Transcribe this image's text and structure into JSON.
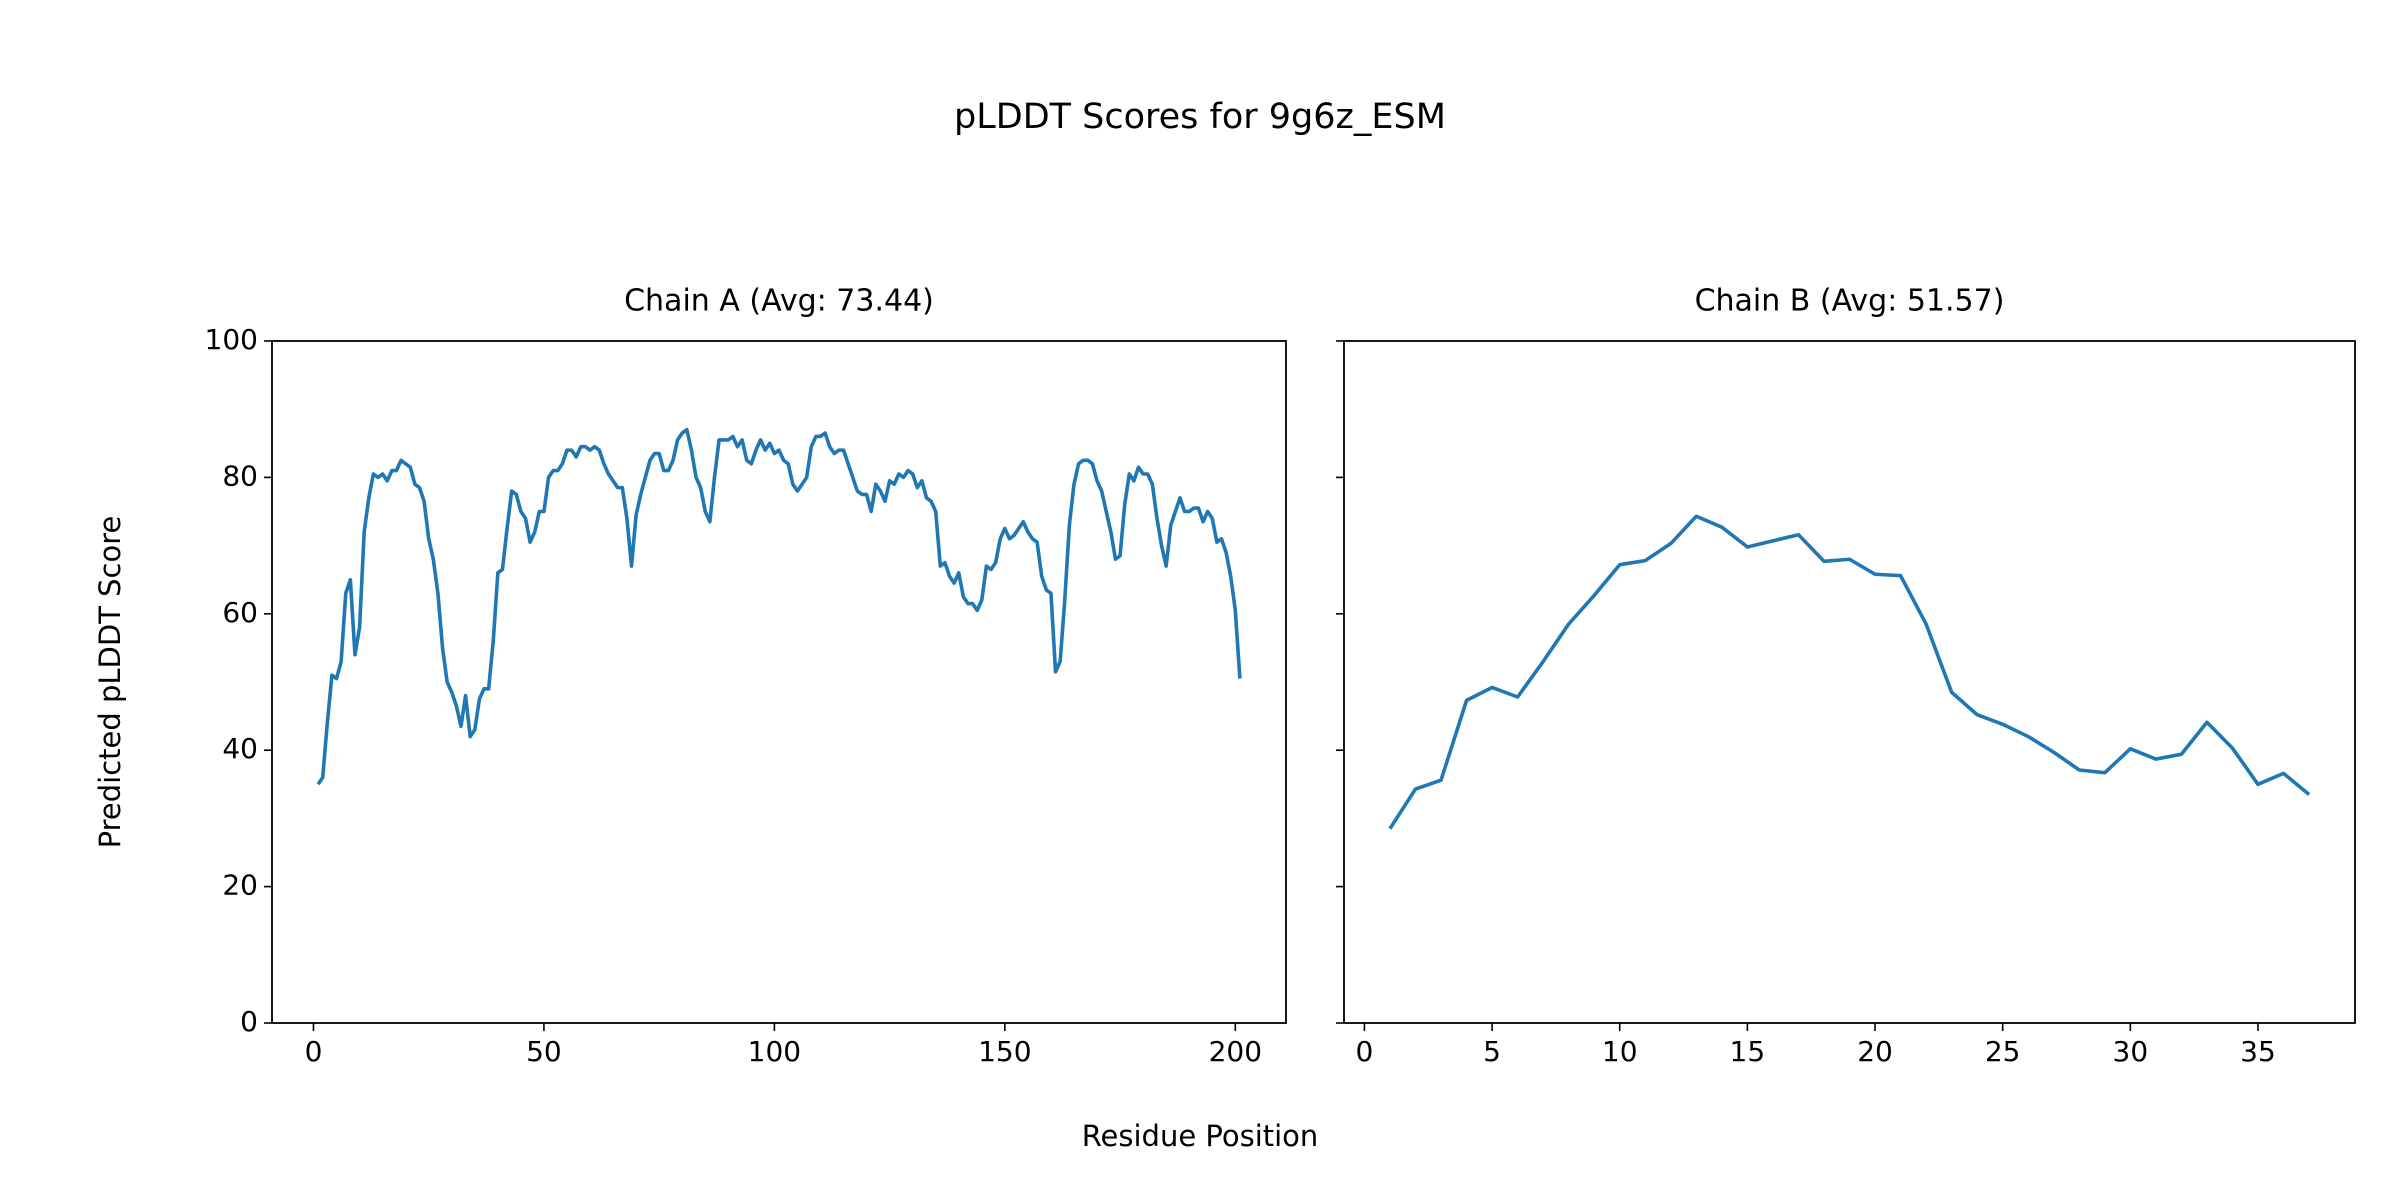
{
  "title": "pLDDT Scores for 9g6z_ESM",
  "xlabel": "Residue Position",
  "chart_data": [
    {
      "type": "line",
      "title": "Chain A (Avg: 73.44)",
      "ylabel": "Predicted pLDDT Score",
      "xlim": [
        -9,
        211
      ],
      "ylim": [
        0,
        100
      ],
      "xticks": [
        0,
        50,
        100,
        150,
        200
      ],
      "yticks": [
        0,
        20,
        40,
        60,
        80,
        100
      ],
      "show_ytick_labels": true,
      "color": "#1f77b4",
      "x": [
        1,
        2,
        3,
        4,
        5,
        6,
        7,
        8,
        9,
        10,
        11,
        12,
        13,
        14,
        15,
        16,
        17,
        18,
        19,
        20,
        21,
        22,
        23,
        24,
        25,
        26,
        27,
        28,
        29,
        30,
        31,
        32,
        33,
        34,
        35,
        36,
        37,
        38,
        39,
        40,
        41,
        42,
        43,
        44,
        45,
        46,
        47,
        48,
        49,
        50,
        51,
        52,
        53,
        54,
        55,
        56,
        57,
        58,
        59,
        60,
        61,
        62,
        63,
        64,
        65,
        66,
        67,
        68,
        69,
        70,
        71,
        72,
        73,
        74,
        75,
        76,
        77,
        78,
        79,
        80,
        81,
        82,
        83,
        84,
        85,
        86,
        87,
        88,
        89,
        90,
        91,
        92,
        93,
        94,
        95,
        96,
        97,
        98,
        99,
        100,
        101,
        102,
        103,
        104,
        105,
        106,
        107,
        108,
        109,
        110,
        111,
        112,
        113,
        114,
        115,
        116,
        117,
        118,
        119,
        120,
        121,
        122,
        123,
        124,
        125,
        126,
        127,
        128,
        129,
        130,
        131,
        132,
        133,
        134,
        135,
        136,
        137,
        138,
        139,
        140,
        141,
        142,
        143,
        144,
        145,
        146,
        147,
        148,
        149,
        150,
        151,
        152,
        153,
        154,
        155,
        156,
        157,
        158,
        159,
        160,
        161,
        162,
        163,
        164,
        165,
        166,
        167,
        168,
        169,
        170,
        171,
        172,
        173,
        174,
        175,
        176,
        177,
        178,
        179,
        180,
        181,
        182,
        183,
        184,
        185,
        186,
        187,
        188,
        189,
        190,
        191,
        192,
        193,
        194,
        195,
        196,
        197,
        198,
        199,
        200,
        201
      ],
      "values": [
        35,
        36,
        44,
        51,
        50.5,
        53,
        63,
        65,
        54,
        58,
        72,
        77,
        80.5,
        80,
        80.5,
        79.5,
        81,
        81,
        82.5,
        82,
        81.5,
        79,
        78.5,
        76.5,
        71,
        68,
        63,
        55,
        50,
        48.5,
        46.5,
        43.5,
        48,
        42,
        43,
        47.5,
        49,
        49,
        56,
        66,
        66.5,
        72.5,
        78,
        77.5,
        75,
        74,
        70.5,
        72,
        75,
        75,
        80,
        81,
        81,
        82,
        84,
        84,
        83,
        84.5,
        84.5,
        84,
        84.5,
        84,
        82,
        80.5,
        79.5,
        78.5,
        78.5,
        74,
        67,
        74.5,
        77.5,
        80,
        82.5,
        83.5,
        83.5,
        81,
        81,
        82.5,
        85.5,
        86.5,
        87,
        84,
        80,
        78.5,
        75,
        73.5,
        80,
        85.5,
        85.5,
        85.5,
        86,
        84.5,
        85.5,
        82.5,
        82,
        84,
        85.5,
        84,
        85,
        83.5,
        84,
        82.5,
        82,
        79,
        78,
        79,
        80,
        84.5,
        86,
        86,
        86.5,
        84.5,
        83.5,
        84,
        84,
        82,
        80,
        78,
        77.5,
        77.5,
        75,
        79,
        78,
        76.5,
        79.5,
        79,
        80.5,
        80,
        81,
        80.5,
        78.5,
        79.5,
        77,
        76.5,
        75,
        67,
        67.5,
        65.5,
        64.5,
        66,
        62.5,
        61.5,
        61.5,
        60.5,
        62,
        67,
        66.5,
        67.5,
        71,
        72.5,
        71,
        71.5,
        72.5,
        73.5,
        72,
        71,
        70.5,
        65.5,
        63.5,
        63,
        51.5,
        53,
        62,
        73,
        79,
        82,
        82.5,
        82.5,
        82,
        79.5,
        78,
        75,
        72,
        68,
        68.5,
        76,
        80.5,
        79.5,
        81.5,
        80.5,
        80.5,
        79,
        74,
        70,
        67,
        73,
        75,
        77,
        75,
        75,
        75.5,
        75.5,
        73.5,
        75,
        74,
        70.5,
        71,
        69,
        65.5,
        60.5,
        50.5
      ]
    },
    {
      "type": "line",
      "title": "Chain B (Avg: 51.57)",
      "xlim": [
        -0.8,
        38.8
      ],
      "ylim": [
        0,
        100
      ],
      "xticks": [
        0,
        5,
        10,
        15,
        20,
        25,
        30,
        35
      ],
      "yticks": [
        0,
        20,
        40,
        60,
        80,
        100
      ],
      "show_ytick_labels": false,
      "color": "#1f77b4",
      "x": [
        1,
        2,
        3,
        4,
        5,
        6,
        7,
        8,
        9,
        10,
        11,
        12,
        13,
        14,
        15,
        16,
        17,
        18,
        19,
        20,
        21,
        22,
        23,
        24,
        25,
        26,
        27,
        28,
        29,
        30,
        31,
        32,
        33,
        34,
        35,
        36,
        37
      ],
      "values": [
        28.5,
        34.3,
        35.6,
        47.3,
        49.2,
        47.8,
        53,
        58.5,
        62.7,
        67.2,
        67.8,
        70.3,
        74.3,
        72.7,
        69.8,
        70.7,
        71.6,
        67.7,
        68,
        65.8,
        65.6,
        58.5,
        48.5,
        45.2,
        43.8,
        42,
        39.7,
        37.1,
        36.7,
        40.2,
        38.7,
        39.4,
        44.1,
        40.3,
        35,
        36.6,
        33.5
      ]
    }
  ]
}
